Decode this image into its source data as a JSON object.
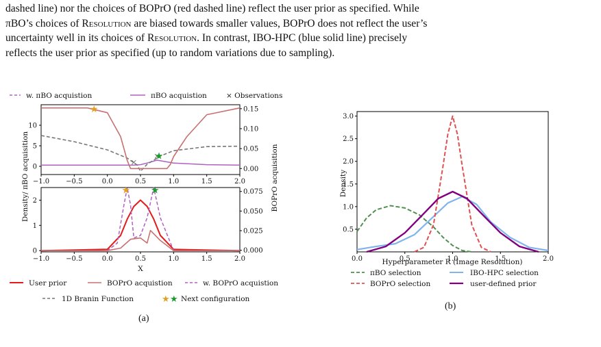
{
  "paragraph": {
    "lines": [
      "dashed line) nor the choices of BOPrO (red dashed line) reflect the user prior as specified. While",
      "πBO’s choices of Resolution are biased towards smaller values, BOPrO does not reflect the user’s",
      "uncertainty well in its choices of Resolution. In contrast, IBO-HPC (blue solid line) precisely",
      "reflects the user prior as specified (up to random variations due to sampling)."
    ]
  },
  "colors": {
    "purple_light": "#b060c0",
    "purple_dark": "#800080",
    "rose": "#c87070",
    "gray": "#777777",
    "red": "#e41a1c",
    "red_dashed": "#e05050",
    "green_dashed": "#4f8f4f",
    "blue": "#7fb4ec",
    "gold_star": "#e0a020",
    "green_star": "#1a9a2a"
  },
  "figure_a": {
    "legend_top": [
      "w. πBO acquistion",
      "πBO acquistion",
      "× Observations"
    ],
    "y_left_label": "Density/ πBO acquisition",
    "y_right_label": "BOPrO acquisition",
    "x_label": "X",
    "legend_bottom": [
      "User prior",
      "BOPrO acquistion",
      "w. BOPrO acquistion",
      "1D Branin Function",
      "Next configuration"
    ],
    "caption": "(a)",
    "chart_data": [
      {
        "type": "line",
        "panel": "top",
        "x_ticks": [
          "−1.0",
          "−0.5",
          "0.0",
          "0.5",
          "1.0",
          "1.5",
          "2.0"
        ],
        "y_left_ticks": [
          "0",
          "5",
          "10"
        ],
        "y_right_ticks": [
          "0.00",
          "0.05",
          "0.10",
          "0.15"
        ],
        "xlim": [
          -1,
          2
        ],
        "ylim_left": [
          -2,
          15
        ],
        "ylim_right": [
          -0.015,
          0.16
        ],
        "series": [
          {
            "name": "πBO acquistion",
            "x": [
              -1.0,
              0.0,
              0.4,
              0.5,
              0.6,
              0.75,
              1.0,
              1.5,
              2.0
            ],
            "y": [
              0.3,
              0.3,
              0.3,
              0.4,
              0.8,
              1.5,
              0.8,
              0.4,
              0.3
            ]
          },
          {
            "name": "1D Branin Function",
            "x": [
              -1.0,
              -0.5,
              0.0,
              0.3,
              0.45,
              0.5,
              0.6,
              0.8,
              1.0,
              1.5,
              2.0
            ],
            "y": [
              7.5,
              6.0,
              4.0,
              2.0,
              0.3,
              -1.2,
              0.5,
              2.5,
              3.8,
              4.8,
              4.9
            ]
          },
          {
            "name": "BOPrO acquistion",
            "axis": "right",
            "x": [
              -1.0,
              -0.3,
              0.0,
              0.2,
              0.3,
              0.35,
              0.5,
              0.9,
              0.95,
              1.0,
              1.2,
              1.5,
              2.0
            ],
            "y": [
              0.152,
              0.152,
              0.14,
              0.08,
              0.02,
              0.0,
              0.0,
              0.0,
              0.01,
              0.03,
              0.08,
              0.135,
              0.152
            ]
          },
          {
            "name": "Observations",
            "x": [
              0.4,
              0.75
            ],
            "y": [
              1.0,
              2.5
            ]
          },
          {
            "name": "Next configuration",
            "x": [
              -0.2,
              0.78
            ],
            "y": [
              14.0,
              2.6
            ]
          }
        ]
      },
      {
        "type": "line",
        "panel": "bottom",
        "x_ticks": [
          "−1.0",
          "−0.5",
          "0.0",
          "0.5",
          "1.0",
          "1.5",
          "2.0"
        ],
        "y_left_ticks": [
          "0",
          "1",
          "2"
        ],
        "y_right_ticks": [
          "0.000",
          "0.025",
          "0.050",
          "0.075"
        ],
        "xlim": [
          -1,
          2
        ],
        "ylim_left": [
          -0.05,
          2.5
        ],
        "ylim_right": [
          -0.002,
          0.08
        ],
        "series": [
          {
            "name": "User prior",
            "x": [
              -1.0,
              0.0,
              0.2,
              0.3,
              0.4,
              0.5,
              0.6,
              0.7,
              0.8,
              1.0,
              2.0
            ],
            "y": [
              0.0,
              0.05,
              0.6,
              1.25,
              1.75,
              2.0,
              1.75,
              1.25,
              0.6,
              0.05,
              0.0
            ]
          },
          {
            "name": "w. BOPrO acquistion",
            "x": [
              -1.0,
              0.0,
              0.15,
              0.25,
              0.3,
              0.35,
              0.4,
              0.5,
              0.6,
              0.7,
              0.8,
              1.0,
              2.0
            ],
            "y": [
              0.0,
              0.0,
              0.3,
              1.8,
              2.5,
              1.8,
              0.5,
              0.6,
              1.3,
              2.5,
              1.3,
              0.0,
              0.0
            ]
          },
          {
            "name": "BOPrO acquistion",
            "x": [
              -1.0,
              0.0,
              0.2,
              0.35,
              0.5,
              0.6,
              0.65,
              0.8,
              1.0,
              2.0
            ],
            "y": [
              0.0,
              0.0,
              0.1,
              0.45,
              0.5,
              0.3,
              0.8,
              0.4,
              0.0,
              0.0
            ]
          },
          {
            "name": "Next configuration",
            "x": [
              0.28,
              0.72
            ],
            "y": [
              2.4,
              2.4
            ]
          }
        ]
      }
    ]
  },
  "figure_b": {
    "y_label": "Density",
    "x_label": "Hyperparameter R (Image Resolution)",
    "legend": [
      "πBO selection",
      "IBO-HPC selection",
      "BOPrO selection",
      "user-defined prior"
    ],
    "caption": "(b)",
    "chart_data": {
      "type": "line",
      "x_ticks": [
        "0.0",
        "0.5",
        "1.0",
        "1.5",
        "2.0"
      ],
      "y_ticks": [
        "0.5",
        "1.0",
        "1.5",
        "2.0",
        "2.5",
        "3.0"
      ],
      "xlim": [
        0,
        2
      ],
      "ylim": [
        0,
        3.1
      ],
      "series": [
        {
          "name": "πBO selection",
          "x": [
            0.0,
            0.1,
            0.2,
            0.35,
            0.5,
            0.65,
            0.8,
            0.9,
            1.0,
            1.1,
            1.2
          ],
          "y": [
            0.45,
            0.75,
            0.93,
            1.02,
            0.97,
            0.82,
            0.55,
            0.32,
            0.14,
            0.03,
            0.0
          ]
        },
        {
          "name": "IBO-HPC selection",
          "x": [
            0.0,
            0.2,
            0.4,
            0.6,
            0.8,
            0.95,
            1.1,
            1.25,
            1.4,
            1.6,
            1.8,
            2.0
          ],
          "y": [
            0.05,
            0.12,
            0.18,
            0.38,
            0.78,
            1.08,
            1.22,
            1.05,
            0.66,
            0.32,
            0.1,
            0.03
          ]
        },
        {
          "name": "BOPrO selection",
          "x": [
            0.6,
            0.7,
            0.8,
            0.9,
            0.95,
            1.0,
            1.05,
            1.1,
            1.2,
            1.3,
            1.4
          ],
          "y": [
            0.0,
            0.1,
            0.6,
            1.9,
            2.6,
            3.0,
            2.6,
            1.9,
            0.6,
            0.1,
            0.0
          ]
        },
        {
          "name": "user-defined prior",
          "x": [
            0.1,
            0.3,
            0.5,
            0.7,
            0.85,
            1.0,
            1.15,
            1.3,
            1.5,
            1.7,
            1.9
          ],
          "y": [
            0.0,
            0.12,
            0.42,
            0.85,
            1.18,
            1.33,
            1.18,
            0.85,
            0.42,
            0.12,
            0.0
          ]
        }
      ]
    }
  }
}
